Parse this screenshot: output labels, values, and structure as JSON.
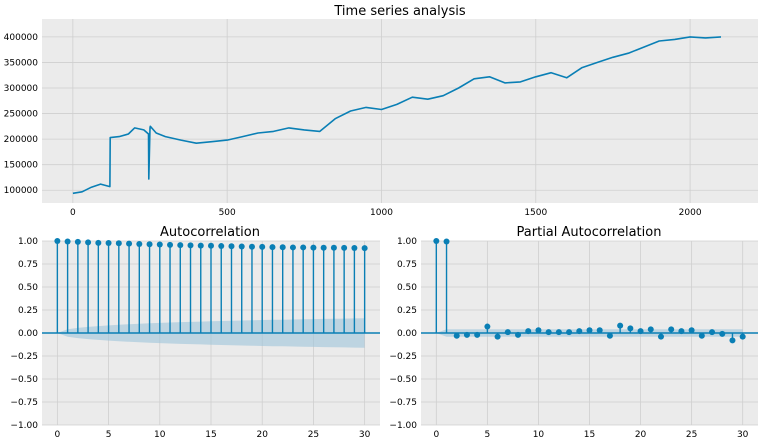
{
  "chart_data": [
    {
      "type": "line",
      "title": "Time series analysis",
      "color": "#0a7fb5",
      "xlim": [
        -100,
        2220
      ],
      "ylim": [
        75000,
        435000
      ],
      "x_ticks": [
        0,
        500,
        1000,
        1500,
        2000
      ],
      "y_ticks": [
        100000,
        150000,
        200000,
        250000,
        300000,
        350000,
        400000
      ],
      "x_tick_labels": [
        "0",
        "500",
        "1000",
        "1500",
        "2000"
      ],
      "y_tick_labels": [
        "100000",
        "150000",
        "200000",
        "250000",
        "300000",
        "350000",
        "400000"
      ],
      "grid": true,
      "x": [
        0,
        30,
        60,
        90,
        120,
        121,
        150,
        180,
        200,
        230,
        245,
        246,
        250,
        251,
        270,
        300,
        350,
        400,
        450,
        500,
        550,
        600,
        650,
        700,
        750,
        800,
        850,
        900,
        950,
        1000,
        1050,
        1100,
        1150,
        1200,
        1250,
        1300,
        1350,
        1400,
        1450,
        1500,
        1550,
        1600,
        1650,
        1700,
        1750,
        1800,
        1850,
        1900,
        1950,
        2000,
        2050,
        2100
      ],
      "y": [
        94000,
        97000,
        106000,
        112000,
        107000,
        203000,
        205000,
        210000,
        222000,
        218000,
        210000,
        122000,
        222000,
        225000,
        212000,
        205000,
        198000,
        192000,
        195000,
        198000,
        205000,
        212000,
        215000,
        222000,
        218000,
        215000,
        240000,
        255000,
        262000,
        258000,
        268000,
        282000,
        278000,
        285000,
        300000,
        318000,
        322000,
        310000,
        312000,
        322000,
        330000,
        320000,
        340000,
        350000,
        360000,
        368000,
        380000,
        392000,
        395000,
        400000,
        398000,
        400000
      ]
    },
    {
      "type": "stem",
      "title": "Autocorrelation",
      "color": "#0a7fb5",
      "band_color": "#9ec4da",
      "xlim": [
        -1.5,
        31.5
      ],
      "ylim": [
        -1.0,
        1.0
      ],
      "x_ticks": [
        0,
        5,
        10,
        15,
        20,
        25,
        30
      ],
      "y_ticks": [
        -1.0,
        -0.75,
        -0.5,
        -0.25,
        0.0,
        0.25,
        0.5,
        0.75,
        1.0
      ],
      "x_tick_labels": [
        "0",
        "5",
        "10",
        "15",
        "20",
        "25",
        "30"
      ],
      "y_tick_labels": [
        "−1.00",
        "−0.75",
        "−0.50",
        "−0.25",
        "0.00",
        "0.25",
        "0.50",
        "0.75",
        "1.00"
      ],
      "grid": true,
      "x": [
        0,
        1,
        2,
        3,
        4,
        5,
        6,
        7,
        8,
        9,
        10,
        11,
        12,
        13,
        14,
        15,
        16,
        17,
        18,
        19,
        20,
        21,
        22,
        23,
        24,
        25,
        26,
        27,
        28,
        29,
        30
      ],
      "y": [
        1.0,
        0.995,
        0.99,
        0.985,
        0.98,
        0.978,
        0.975,
        0.972,
        0.968,
        0.965,
        0.962,
        0.958,
        0.955,
        0.952,
        0.95,
        0.948,
        0.945,
        0.943,
        0.94,
        0.938,
        0.936,
        0.934,
        0.932,
        0.93,
        0.93,
        0.928,
        0.927,
        0.926,
        0.925,
        0.924,
        0.923
      ],
      "confidence_upper": [
        0.0,
        0.04,
        0.055,
        0.066,
        0.075,
        0.083,
        0.09,
        0.096,
        0.101,
        0.106,
        0.11,
        0.114,
        0.118,
        0.121,
        0.124,
        0.127,
        0.13,
        0.133,
        0.136,
        0.138,
        0.141,
        0.143,
        0.145,
        0.147,
        0.149,
        0.151,
        0.153,
        0.155,
        0.157,
        0.159,
        0.161
      ]
    },
    {
      "type": "stem",
      "title": "Partial Autocorrelation",
      "color": "#0a7fb5",
      "band_color": "#9ec4da",
      "xlim": [
        -1.5,
        31.5
      ],
      "ylim": [
        -1.0,
        1.0
      ],
      "x_ticks": [
        0,
        5,
        10,
        15,
        20,
        25,
        30
      ],
      "y_ticks": [
        -1.0,
        -0.75,
        -0.5,
        -0.25,
        0.0,
        0.25,
        0.5,
        0.75,
        1.0
      ],
      "x_tick_labels": [
        "0",
        "5",
        "10",
        "15",
        "20",
        "25",
        "30"
      ],
      "y_tick_labels": [
        "−1.00",
        "−0.75",
        "−0.50",
        "−0.25",
        "0.00",
        "0.25",
        "0.50",
        "0.75",
        "1.00"
      ],
      "grid": true,
      "x": [
        0,
        1,
        2,
        3,
        4,
        5,
        6,
        7,
        8,
        9,
        10,
        11,
        12,
        13,
        14,
        15,
        16,
        17,
        18,
        19,
        20,
        21,
        22,
        23,
        24,
        25,
        26,
        27,
        28,
        29,
        30
      ],
      "y": [
        1.0,
        0.995,
        -0.03,
        -0.02,
        -0.02,
        0.07,
        -0.04,
        0.01,
        -0.02,
        0.02,
        0.03,
        0.01,
        0.01,
        0.01,
        0.02,
        0.03,
        0.03,
        -0.03,
        0.08,
        0.05,
        0.02,
        0.04,
        -0.04,
        0.04,
        0.02,
        0.03,
        -0.03,
        0.01,
        -0.01,
        -0.08,
        -0.04
      ],
      "confidence_upper": [
        0.0,
        0.04,
        0.04,
        0.04,
        0.04,
        0.04,
        0.04,
        0.04,
        0.04,
        0.04,
        0.04,
        0.04,
        0.04,
        0.04,
        0.04,
        0.04,
        0.04,
        0.04,
        0.04,
        0.04,
        0.04,
        0.04,
        0.04,
        0.04,
        0.04,
        0.04,
        0.04,
        0.04,
        0.04,
        0.04,
        0.04
      ]
    }
  ]
}
